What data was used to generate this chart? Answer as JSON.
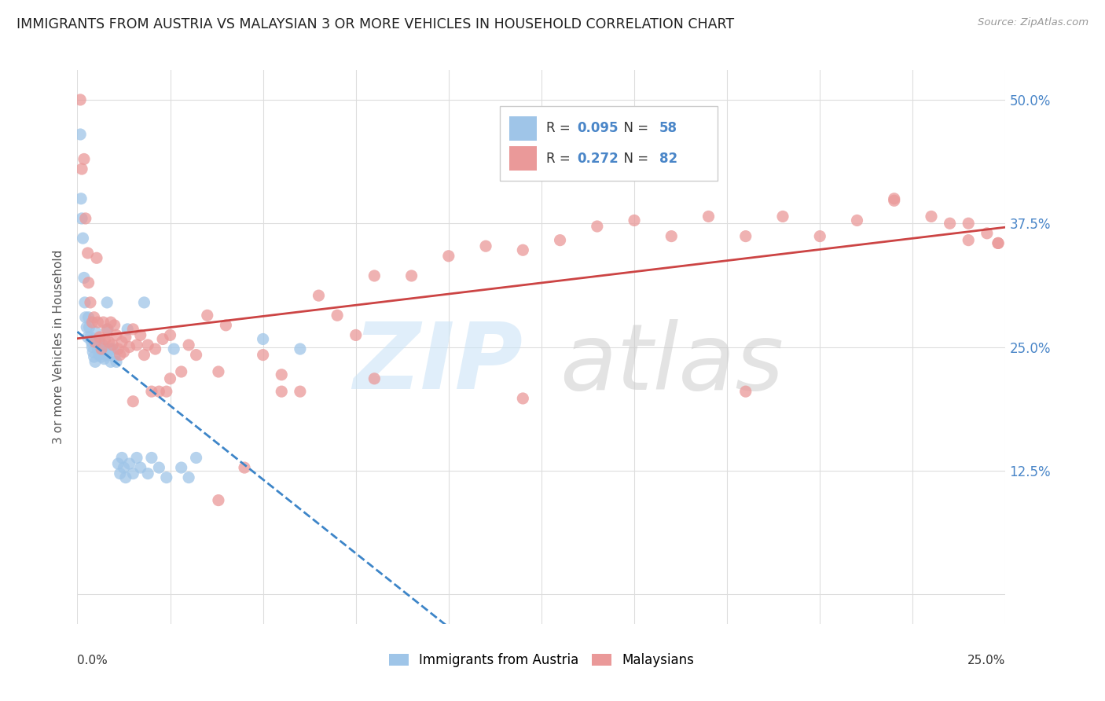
{
  "title": "IMMIGRANTS FROM AUSTRIA VS MALAYSIAN 3 OR MORE VEHICLES IN HOUSEHOLD CORRELATION CHART",
  "source": "Source: ZipAtlas.com",
  "ylabel": "3 or more Vehicles in Household",
  "xmin": 0.0,
  "xmax": 0.25,
  "ymin": -0.03,
  "ymax": 0.53,
  "austria_color": "#9fc5e8",
  "malaysia_color": "#ea9999",
  "austria_line_color": "#3d85c8",
  "malaysia_line_color": "#cc4444",
  "right_tick_color": "#4a86c8",
  "austria_R": 0.095,
  "austria_N": 58,
  "malaysia_R": 0.272,
  "malaysia_N": 82,
  "austria_x": [
    0.0008,
    0.001,
    0.0012,
    0.0015,
    0.0018,
    0.002,
    0.0022,
    0.0025,
    0.0028,
    0.003,
    0.0032,
    0.0035,
    0.0038,
    0.004,
    0.0042,
    0.0045,
    0.0048,
    0.005,
    0.0052,
    0.0055,
    0.0058,
    0.006,
    0.0062,
    0.0065,
    0.0068,
    0.007,
    0.0072,
    0.0075,
    0.0078,
    0.008,
    0.0082,
    0.0085,
    0.0088,
    0.009,
    0.0095,
    0.01,
    0.0105,
    0.011,
    0.0115,
    0.012,
    0.0125,
    0.013,
    0.0135,
    0.014,
    0.015,
    0.016,
    0.017,
    0.018,
    0.019,
    0.02,
    0.022,
    0.024,
    0.026,
    0.028,
    0.03,
    0.032,
    0.05,
    0.06
  ],
  "austria_y": [
    0.465,
    0.4,
    0.38,
    0.36,
    0.32,
    0.295,
    0.28,
    0.27,
    0.26,
    0.28,
    0.27,
    0.26,
    0.255,
    0.25,
    0.245,
    0.24,
    0.235,
    0.265,
    0.255,
    0.248,
    0.242,
    0.255,
    0.248,
    0.24,
    0.252,
    0.245,
    0.238,
    0.248,
    0.242,
    0.295,
    0.268,
    0.242,
    0.248,
    0.235,
    0.248,
    0.24,
    0.235,
    0.132,
    0.122,
    0.138,
    0.128,
    0.118,
    0.268,
    0.132,
    0.122,
    0.138,
    0.128,
    0.295,
    0.122,
    0.138,
    0.128,
    0.118,
    0.248,
    0.128,
    0.118,
    0.138,
    0.258,
    0.248
  ],
  "malaysia_x": [
    0.0008,
    0.0012,
    0.0018,
    0.0022,
    0.0028,
    0.003,
    0.0035,
    0.004,
    0.0045,
    0.0048,
    0.0052,
    0.0055,
    0.006,
    0.0065,
    0.007,
    0.0075,
    0.008,
    0.0085,
    0.009,
    0.0095,
    0.01,
    0.0105,
    0.011,
    0.0115,
    0.012,
    0.0125,
    0.013,
    0.014,
    0.015,
    0.016,
    0.017,
    0.018,
    0.019,
    0.02,
    0.021,
    0.022,
    0.023,
    0.024,
    0.025,
    0.028,
    0.03,
    0.032,
    0.035,
    0.038,
    0.04,
    0.045,
    0.05,
    0.055,
    0.06,
    0.065,
    0.07,
    0.075,
    0.08,
    0.09,
    0.1,
    0.11,
    0.12,
    0.13,
    0.14,
    0.15,
    0.16,
    0.17,
    0.18,
    0.19,
    0.2,
    0.21,
    0.22,
    0.23,
    0.235,
    0.24,
    0.245,
    0.248,
    0.015,
    0.025,
    0.038,
    0.055,
    0.08,
    0.12,
    0.18,
    0.22,
    0.24,
    0.248
  ],
  "malaysia_y": [
    0.5,
    0.43,
    0.44,
    0.38,
    0.345,
    0.315,
    0.295,
    0.275,
    0.28,
    0.255,
    0.34,
    0.275,
    0.26,
    0.248,
    0.275,
    0.258,
    0.268,
    0.255,
    0.275,
    0.252,
    0.272,
    0.262,
    0.248,
    0.242,
    0.255,
    0.245,
    0.26,
    0.25,
    0.268,
    0.252,
    0.262,
    0.242,
    0.252,
    0.205,
    0.248,
    0.205,
    0.258,
    0.205,
    0.262,
    0.225,
    0.252,
    0.242,
    0.282,
    0.225,
    0.272,
    0.128,
    0.242,
    0.222,
    0.205,
    0.302,
    0.282,
    0.262,
    0.322,
    0.322,
    0.342,
    0.352,
    0.348,
    0.358,
    0.372,
    0.378,
    0.362,
    0.382,
    0.362,
    0.382,
    0.362,
    0.378,
    0.398,
    0.382,
    0.375,
    0.358,
    0.365,
    0.355,
    0.195,
    0.218,
    0.095,
    0.205,
    0.218,
    0.198,
    0.205,
    0.4,
    0.375,
    0.355
  ]
}
